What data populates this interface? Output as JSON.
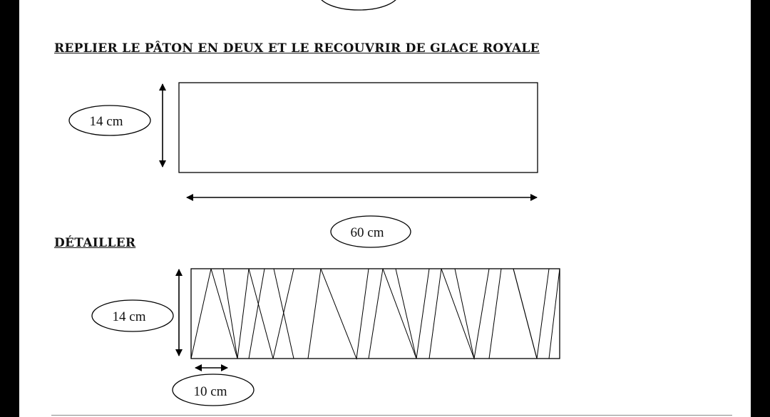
{
  "document": {
    "heading_fold": "REPLIER LE PÂTON EN DEUX ET LE RECOUVRIR DE GLACE ROYALE",
    "heading_cut": "DÉTAILLER",
    "diagram_fold": {
      "height_label": "14 cm",
      "width_label": "60 cm"
    },
    "diagram_cut": {
      "height_label": "14 cm",
      "triangle_base_label": "10 cm"
    }
  }
}
